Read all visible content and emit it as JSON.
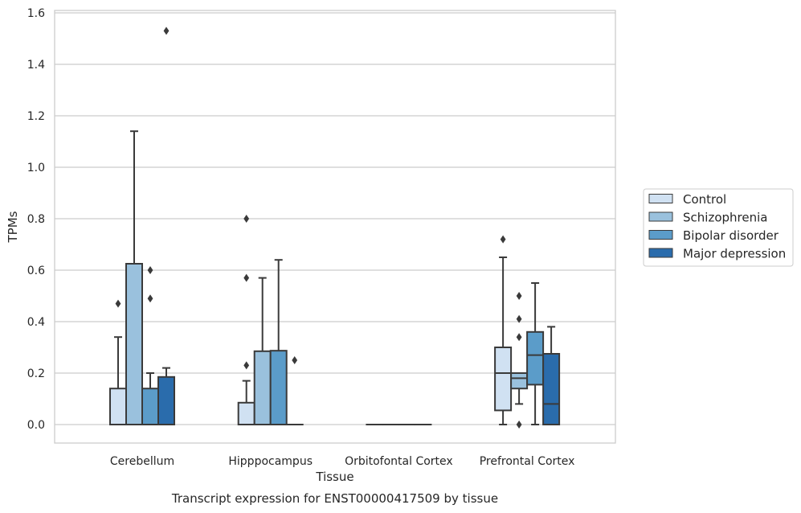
{
  "chart_data": {
    "type": "box",
    "xlabel": "Tissue",
    "ylabel": "TPMs",
    "caption": "Transcript expression for ENST00000417509 by tissue",
    "ylim": [
      -0.07,
      1.61
    ],
    "yticks": [
      "0.0",
      "0.2",
      "0.4",
      "0.6",
      "0.8",
      "1.0",
      "1.2",
      "1.4",
      "1.6"
    ],
    "grid": true,
    "legend_position": "right",
    "categories": [
      "Cerebellum",
      "Hipppocampus",
      "Orbitofontal Cortex",
      "Prefrontal Cortex"
    ],
    "series": [
      {
        "name": "Control",
        "color": "#d0e1f2",
        "boxes": [
          {
            "whislo": 0.0,
            "q1": 0.0,
            "med": 0.0,
            "q3": 0.14,
            "whishi": 0.34,
            "fliers": [
              0.47
            ]
          },
          {
            "whislo": 0.0,
            "q1": 0.0,
            "med": 0.0,
            "q3": 0.085,
            "whishi": 0.17,
            "fliers": [
              0.23,
              0.57,
              0.8
            ]
          },
          {
            "whislo": 0.0,
            "q1": 0.0,
            "med": 0.0,
            "q3": 0.0,
            "whishi": 0.0,
            "fliers": []
          },
          {
            "whislo": 0.0,
            "q1": 0.055,
            "med": 0.2,
            "q3": 0.3,
            "whishi": 0.65,
            "fliers": [
              0.72
            ]
          }
        ]
      },
      {
        "name": "Schizophrenia",
        "color": "#9ac1dd",
        "boxes": [
          {
            "whislo": 0.0,
            "q1": 0.0,
            "med": 0.0,
            "q3": 0.625,
            "whishi": 1.14,
            "fliers": []
          },
          {
            "whislo": 0.0,
            "q1": 0.0,
            "med": 0.0,
            "q3": 0.285,
            "whishi": 0.57,
            "fliers": []
          },
          {
            "whislo": 0.0,
            "q1": 0.0,
            "med": 0.0,
            "q3": 0.0,
            "whishi": 0.0,
            "fliers": []
          },
          {
            "whislo": 0.08,
            "q1": 0.14,
            "med": 0.18,
            "q3": 0.2,
            "whishi": 0.2,
            "fliers": [
              0.0,
              0.34,
              0.41,
              0.5
            ]
          }
        ]
      },
      {
        "name": "Bipolar disorder",
        "color": "#5b9cc9",
        "boxes": [
          {
            "whislo": 0.0,
            "q1": 0.0,
            "med": 0.0,
            "q3": 0.14,
            "whishi": 0.2,
            "fliers": [
              0.49,
              0.6
            ]
          },
          {
            "whislo": 0.0,
            "q1": 0.0,
            "med": 0.0,
            "q3": 0.287,
            "whishi": 0.64,
            "fliers": []
          },
          {
            "whislo": 0.0,
            "q1": 0.0,
            "med": 0.0,
            "q3": 0.0,
            "whishi": 0.0,
            "fliers": []
          },
          {
            "whislo": 0.0,
            "q1": 0.155,
            "med": 0.27,
            "q3": 0.36,
            "whishi": 0.55,
            "fliers": []
          }
        ]
      },
      {
        "name": "Major depression",
        "color": "#2a6cac",
        "boxes": [
          {
            "whislo": 0.0,
            "q1": 0.0,
            "med": 0.0,
            "q3": 0.185,
            "whishi": 0.22,
            "fliers": [
              1.53
            ]
          },
          {
            "whislo": 0.0,
            "q1": 0.0,
            "med": 0.0,
            "q3": 0.0,
            "whishi": 0.0,
            "fliers": [
              0.25
            ]
          },
          {
            "whislo": 0.0,
            "q1": 0.0,
            "med": 0.0,
            "q3": 0.0,
            "whishi": 0.0,
            "fliers": []
          },
          {
            "whislo": 0.0,
            "q1": 0.0,
            "med": 0.08,
            "q3": 0.275,
            "whishi": 0.38,
            "fliers": []
          }
        ]
      }
    ]
  }
}
